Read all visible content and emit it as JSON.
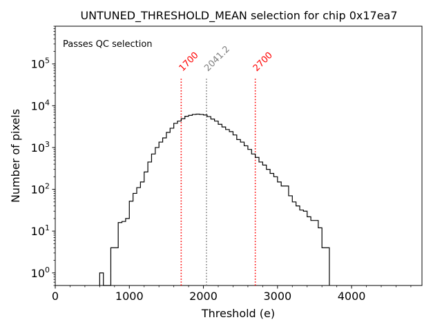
{
  "chart_data": {
    "type": "histogram",
    "title": "UNTUNED_THRESHOLD_MEAN selection for chip 0x17ea7",
    "xlabel": "Threshold (e)",
    "ylabel": "Number of pixels",
    "xlim": [
      0,
      4950
    ],
    "ylim": [
      0.5,
      800000
    ],
    "yscale": "log",
    "xticks": [
      {
        "value": 0,
        "label": "0"
      },
      {
        "value": 1000,
        "label": "1000"
      },
      {
        "value": 2000,
        "label": "2000"
      },
      {
        "value": 3000,
        "label": "3000"
      },
      {
        "value": 4000,
        "label": "4000"
      }
    ],
    "yticks": [
      {
        "value": 1,
        "base": "10",
        "exp": "0"
      },
      {
        "value": 10,
        "base": "10",
        "exp": "1"
      },
      {
        "value": 100,
        "base": "10",
        "exp": "2"
      },
      {
        "value": 1000,
        "base": "10",
        "exp": "3"
      },
      {
        "value": 10000,
        "base": "10",
        "exp": "4"
      },
      {
        "value": 100000,
        "base": "10",
        "exp": "5"
      }
    ],
    "bin_width": 50,
    "bin_start": 600,
    "counts": [
      1,
      0,
      0,
      4,
      4,
      16,
      17,
      20,
      52,
      80,
      110,
      150,
      260,
      450,
      700,
      1000,
      1350,
      1700,
      2300,
      2900,
      3800,
      4300,
      4900,
      5600,
      5900,
      6200,
      6300,
      6200,
      6000,
      5500,
      4800,
      4300,
      3600,
      3100,
      2700,
      2400,
      2000,
      1550,
      1350,
      1100,
      900,
      700,
      580,
      450,
      380,
      300,
      240,
      200,
      150,
      120,
      120,
      70,
      50,
      40,
      32,
      30,
      22,
      18,
      18,
      12,
      4,
      4
    ],
    "lines": [
      {
        "value": 1700,
        "label": "1700",
        "color": "#ff0000"
      },
      {
        "value": 2041.2,
        "label": "2041.2",
        "color": "#808080"
      },
      {
        "value": 2700,
        "label": "2700",
        "color": "#ff0000"
      }
    ],
    "annotation": {
      "text": "Passes QC selection",
      "color": "#008000"
    },
    "color": "#000000"
  }
}
